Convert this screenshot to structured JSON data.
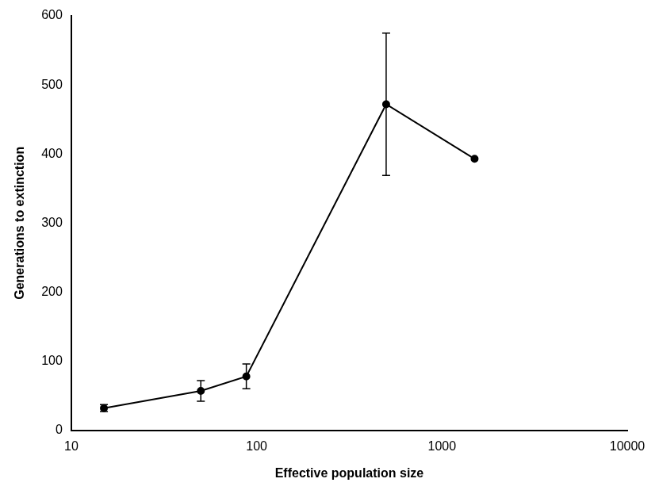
{
  "chart_data": {
    "type": "line",
    "x_label": "Effective population size",
    "y_label": "Generations to extinction",
    "x": [
      15,
      50,
      88,
      500,
      1500
    ],
    "series": [
      {
        "name": "Generations to extinction",
        "color": "#000000",
        "values": [
          32,
          57,
          78,
          472,
          393
        ],
        "errors": [
          5,
          15,
          18,
          103,
          null
        ],
        "marker": "circle",
        "line_style": "solid"
      }
    ],
    "log": "x",
    "xlim": [
      10,
      10000
    ],
    "xticks": [
      10,
      100,
      1000,
      10000
    ],
    "ylim": [
      0,
      600
    ],
    "yticks": [
      0,
      100,
      200,
      300,
      400,
      500,
      600
    ],
    "grid": false
  }
}
